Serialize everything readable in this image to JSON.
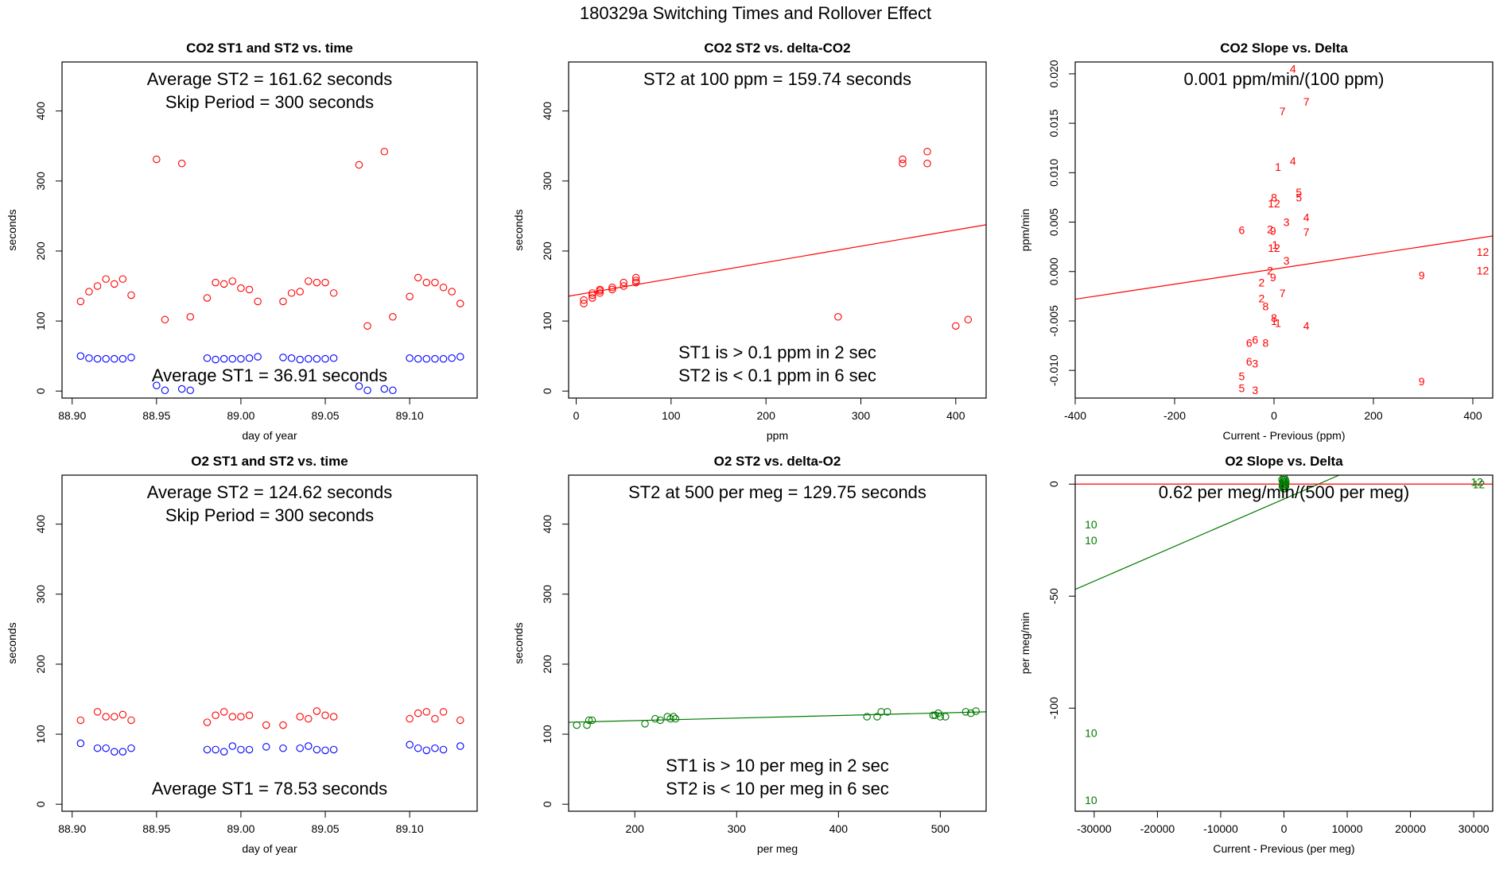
{
  "page_title": "180329a   Switching Times and Rollover Effect",
  "colors": {
    "red": "#ff0000",
    "blue": "#0000ff",
    "green": "#007a00",
    "axis": "#000000"
  },
  "chart_data": [
    {
      "id": "p1",
      "type": "scatter",
      "title": "CO2 ST1 and ST2 vs. time",
      "xlabel": "day of year",
      "ylabel": "seconds",
      "xlim": [
        88.894,
        89.14
      ],
      "ylim": [
        -10,
        470
      ],
      "xticks": [
        88.9,
        88.95,
        89.0,
        89.05,
        89.1
      ],
      "xtick_labels": [
        "88.90",
        "88.95",
        "89.00",
        "89.05",
        "89.10"
      ],
      "yticks": [
        0,
        100,
        200,
        300,
        400
      ],
      "ytick_labels": [
        "0",
        "100",
        "200",
        "300",
        "400"
      ],
      "annotations": [
        {
          "text": "Average ST2 =  161.62  seconds",
          "pos": "top-1"
        },
        {
          "text": "Skip Period =  300  seconds",
          "pos": "top-2"
        },
        {
          "text": "Average ST1 =  36.91  seconds",
          "pos": "bottom-1"
        }
      ],
      "series": [
        {
          "name": "ST2",
          "marker": "circle",
          "color": "#ff0000",
          "x": [
            88.905,
            88.91,
            88.915,
            88.92,
            88.925,
            88.93,
            88.935,
            88.95,
            88.955,
            88.965,
            88.97,
            88.98,
            88.985,
            88.99,
            88.995,
            89.0,
            89.005,
            89.01,
            89.025,
            89.03,
            89.035,
            89.04,
            89.045,
            89.05,
            89.055,
            89.07,
            89.075,
            89.085,
            89.09,
            89.1,
            89.105,
            89.11,
            89.115,
            89.12,
            89.125,
            89.13
          ],
          "y": [
            128,
            142,
            150,
            160,
            153,
            160,
            137,
            331,
            102,
            325,
            106,
            133,
            155,
            153,
            157,
            147,
            145,
            128,
            128,
            140,
            142,
            157,
            155,
            155,
            140,
            323,
            93,
            342,
            106,
            135,
            162,
            155,
            155,
            148,
            142,
            125
          ]
        },
        {
          "name": "ST1",
          "marker": "circle",
          "color": "#0000ff",
          "x": [
            88.905,
            88.91,
            88.915,
            88.92,
            88.925,
            88.93,
            88.935,
            88.95,
            88.955,
            88.965,
            88.97,
            88.98,
            88.985,
            88.99,
            88.995,
            89.0,
            89.005,
            89.01,
            89.025,
            89.03,
            89.035,
            89.04,
            89.045,
            89.05,
            89.055,
            89.07,
            89.075,
            89.085,
            89.09,
            89.1,
            89.105,
            89.11,
            89.115,
            89.12,
            89.125,
            89.13
          ],
          "y": [
            50,
            47,
            46,
            46,
            46,
            46,
            48,
            8,
            1,
            3,
            1,
            47,
            45,
            46,
            46,
            46,
            47,
            49,
            48,
            47,
            45,
            46,
            46,
            46,
            47,
            7,
            1,
            3,
            1,
            47,
            46,
            46,
            46,
            46,
            47,
            49
          ]
        }
      ]
    },
    {
      "id": "p2",
      "type": "scatter",
      "title": "CO2 ST2 vs. delta-CO2",
      "xlabel": "ppm",
      "ylabel": "seconds",
      "xlim": [
        -8,
        432
      ],
      "ylim": [
        -10,
        470
      ],
      "xticks": [
        0,
        100,
        200,
        300,
        400
      ],
      "xtick_labels": [
        "0",
        "100",
        "200",
        "300",
        "400"
      ],
      "yticks": [
        0,
        100,
        200,
        300,
        400
      ],
      "ytick_labels": [
        "0",
        "100",
        "200",
        "300",
        "400"
      ],
      "annotations": [
        {
          "text": "ST2 at 100 ppm =  159.74  seconds",
          "pos": "top-1"
        },
        {
          "text": "ST1 is > 0.1 ppm in 2 sec",
          "pos": "bottom-2"
        },
        {
          "text": "ST2 is < 0.1 ppm in 6 sec",
          "pos": "bottom-1"
        }
      ],
      "fit_line": {
        "color": "#ff0000",
        "x": [
          -8,
          432
        ],
        "y": [
          135.5,
          237.5
        ]
      },
      "series": [
        {
          "name": "ST2",
          "marker": "circle",
          "color": "#ff0000",
          "x": [
            8,
            8,
            17,
            17,
            17,
            25,
            25,
            25,
            38,
            38,
            50,
            50,
            63,
            63,
            63,
            276,
            344,
            344,
            370,
            370,
            400,
            413
          ],
          "y": [
            125,
            130,
            133,
            137,
            140,
            140,
            143,
            145,
            145,
            148,
            150,
            155,
            155,
            158,
            162,
            106,
            325,
            331,
            325,
            342,
            93,
            102
          ]
        }
      ]
    },
    {
      "id": "p3",
      "type": "scatter",
      "title": "CO2 Slope vs. Delta",
      "xlabel": "Current - Previous (ppm)",
      "ylabel": "ppm/min",
      "xlim": [
        -400,
        440
      ],
      "ylim": [
        -0.0128,
        0.0212
      ],
      "xticks": [
        -400,
        -200,
        0,
        200,
        400
      ],
      "xtick_labels": [
        "-400",
        "-200",
        "0",
        "200",
        "400"
      ],
      "yticks": [
        -0.01,
        -0.005,
        0.0,
        0.005,
        0.01,
        0.015,
        0.02
      ],
      "ytick_labels": [
        "-0.010",
        "-0.005",
        "0.000",
        "0.005",
        "0.010",
        "0.015",
        "0.020"
      ],
      "annotations": [
        {
          "text": "0.001  ppm/min/(100 ppm)",
          "pos": "top-1"
        }
      ],
      "fit_line": {
        "color": "#ff0000",
        "x": [
          -400,
          440
        ],
        "y": [
          -0.0028,
          0.0036
        ]
      },
      "series": [
        {
          "name": "slope labels",
          "marker": "label",
          "color": "#ff0000",
          "points": [
            {
              "x": 38,
              "y": 0.0205,
              "label": "4"
            },
            {
              "x": 65,
              "y": 0.0172,
              "label": "7"
            },
            {
              "x": 17,
              "y": 0.0162,
              "label": "7"
            },
            {
              "x": 38,
              "y": 0.0112,
              "label": "4"
            },
            {
              "x": 8,
              "y": 0.0106,
              "label": "1"
            },
            {
              "x": 50,
              "y": 0.008,
              "label": "5"
            },
            {
              "x": 50,
              "y": 0.0075,
              "label": "5"
            },
            {
              "x": 0,
              "y": 0.0075,
              "label": "8"
            },
            {
              "x": 0,
              "y": 0.0069,
              "label": "12"
            },
            {
              "x": 65,
              "y": 0.0055,
              "label": "4"
            },
            {
              "x": 25,
              "y": 0.005,
              "label": "3"
            },
            {
              "x": -65,
              "y": 0.0042,
              "label": "6"
            },
            {
              "x": -8,
              "y": 0.0043,
              "label": "2"
            },
            {
              "x": -2,
              "y": 0.0041,
              "label": "9"
            },
            {
              "x": 65,
              "y": 0.004,
              "label": "7"
            },
            {
              "x": 2,
              "y": 0.0027,
              "label": "1"
            },
            {
              "x": 0,
              "y": 0.0024,
              "label": "12"
            },
            {
              "x": 25,
              "y": 0.0011,
              "label": "3"
            },
            {
              "x": -8,
              "y": 0.0001,
              "label": "2"
            },
            {
              "x": -2,
              "y": -0.0006,
              "label": "9"
            },
            {
              "x": -25,
              "y": -0.0011,
              "label": "2"
            },
            {
              "x": 17,
              "y": -0.0022,
              "label": "7"
            },
            {
              "x": -25,
              "y": -0.0027,
              "label": "2"
            },
            {
              "x": -17,
              "y": -0.0035,
              "label": "8"
            },
            {
              "x": 0,
              "y": -0.0047,
              "label": "8"
            },
            {
              "x": 0,
              "y": -0.005,
              "label": "1"
            },
            {
              "x": 8,
              "y": -0.0052,
              "label": "1"
            },
            {
              "x": 65,
              "y": -0.0055,
              "label": "4"
            },
            {
              "x": -50,
              "y": -0.0072,
              "label": "6"
            },
            {
              "x": -38,
              "y": -0.0069,
              "label": "6"
            },
            {
              "x": -17,
              "y": -0.0072,
              "label": "8"
            },
            {
              "x": -50,
              "y": -0.0091,
              "label": "6"
            },
            {
              "x": -38,
              "y": -0.0093,
              "label": "3"
            },
            {
              "x": -65,
              "y": -0.0106,
              "label": "5"
            },
            {
              "x": -65,
              "y": -0.0118,
              "label": "5"
            },
            {
              "x": -38,
              "y": -0.012,
              "label": "3"
            },
            {
              "x": 297,
              "y": -0.0004,
              "label": "9"
            },
            {
              "x": 297,
              "y": -0.0111,
              "label": "9"
            },
            {
              "x": 420,
              "y": 0.002,
              "label": "12"
            },
            {
              "x": 420,
              "y": 0.0001,
              "label": "12"
            }
          ]
        }
      ]
    },
    {
      "id": "p4",
      "type": "scatter",
      "title": "O2 ST1 and ST2 vs. time",
      "xlabel": "day of year",
      "ylabel": "seconds",
      "xlim": [
        88.894,
        89.14
      ],
      "ylim": [
        -10,
        470
      ],
      "xticks": [
        88.9,
        88.95,
        89.0,
        89.05,
        89.1
      ],
      "xtick_labels": [
        "88.90",
        "88.95",
        "89.00",
        "89.05",
        "89.10"
      ],
      "yticks": [
        0,
        100,
        200,
        300,
        400
      ],
      "ytick_labels": [
        "0",
        "100",
        "200",
        "300",
        "400"
      ],
      "annotations": [
        {
          "text": "Average ST2 =  124.62  seconds",
          "pos": "top-1"
        },
        {
          "text": "Skip Period =  300  seconds",
          "pos": "top-2"
        },
        {
          "text": "Average ST1 =  78.53  seconds",
          "pos": "bottom-1"
        }
      ],
      "series": [
        {
          "name": "ST2",
          "marker": "circle",
          "color": "#ff0000",
          "x": [
            88.905,
            88.915,
            88.92,
            88.925,
            88.93,
            88.935,
            88.98,
            88.985,
            88.99,
            88.995,
            89.0,
            89.005,
            89.015,
            89.025,
            89.035,
            89.04,
            89.045,
            89.05,
            89.055,
            89.1,
            89.105,
            89.11,
            89.115,
            89.12,
            89.13
          ],
          "y": [
            120,
            132,
            125,
            125,
            128,
            120,
            117,
            127,
            132,
            125,
            125,
            127,
            113,
            113,
            125,
            122,
            133,
            127,
            125,
            122,
            130,
            132,
            122,
            132,
            120
          ]
        },
        {
          "name": "ST1",
          "marker": "circle",
          "color": "#0000ff",
          "x": [
            88.905,
            88.915,
            88.92,
            88.925,
            88.93,
            88.935,
            88.98,
            88.985,
            88.99,
            88.995,
            89.0,
            89.005,
            89.015,
            89.025,
            89.035,
            89.04,
            89.045,
            89.05,
            89.055,
            89.1,
            89.105,
            89.11,
            89.115,
            89.12,
            89.13
          ],
          "y": [
            87,
            80,
            80,
            75,
            75,
            80,
            78,
            78,
            75,
            83,
            78,
            78,
            82,
            80,
            80,
            83,
            78,
            77,
            78,
            85,
            80,
            77,
            80,
            78,
            83
          ]
        }
      ]
    },
    {
      "id": "p5",
      "type": "scatter",
      "title": "O2 ST2 vs. delta-O2",
      "xlabel": "per meg",
      "ylabel": "seconds",
      "xlim": [
        135,
        545
      ],
      "ylim": [
        -10,
        470
      ],
      "xticks": [
        200,
        300,
        400,
        500
      ],
      "xtick_labels": [
        "200",
        "300",
        "400",
        "500"
      ],
      "yticks": [
        0,
        100,
        200,
        300,
        400
      ],
      "ytick_labels": [
        "0",
        "100",
        "200",
        "300",
        "400"
      ],
      "annotations": [
        {
          "text": "ST2 at 500 per meg =  129.75  seconds",
          "pos": "top-1"
        },
        {
          "text": "ST1 is > 10 per meg in 2 sec",
          "pos": "bottom-2"
        },
        {
          "text": "ST2 is < 10 per meg in 6 sec",
          "pos": "bottom-1"
        }
      ],
      "fit_line": {
        "color": "#007a00",
        "x": [
          135,
          545
        ],
        "y": [
          117,
          132
        ]
      },
      "series": [
        {
          "name": "ST2",
          "marker": "circle",
          "color": "#007a00",
          "x": [
            143,
            153,
            155,
            158,
            210,
            220,
            225,
            232,
            235,
            238,
            240,
            428,
            438,
            442,
            448,
            493,
            495,
            498,
            500,
            505,
            525,
            530,
            535
          ],
          "y": [
            113,
            113,
            120,
            120,
            115,
            122,
            120,
            125,
            122,
            125,
            122,
            125,
            125,
            132,
            132,
            127,
            127,
            130,
            125,
            125,
            132,
            130,
            133
          ]
        }
      ]
    },
    {
      "id": "p6",
      "type": "scatter",
      "title": "O2 Slope vs. Delta",
      "xlabel": "Current - Previous (per meg)",
      "ylabel": "per meg/min",
      "xlim": [
        -33000,
        33000
      ],
      "ylim": [
        -146,
        4
      ],
      "xticks": [
        -30000,
        -20000,
        -10000,
        0,
        10000,
        20000,
        30000
      ],
      "xtick_labels": [
        "-30000",
        "-20000",
        "-10000",
        "0",
        "10000",
        "20000",
        "30000"
      ],
      "yticks": [
        -100,
        -50,
        0
      ],
      "ytick_labels": [
        "-100",
        "-50",
        "0"
      ],
      "annotations": [
        {
          "text": "0.62  per meg/min/(500 per meg)",
          "pos": "top-1"
        }
      ],
      "fit_lines": [
        {
          "color": "#007a00",
          "x": [
            -33000,
            12000
          ],
          "y": [
            -47,
            8
          ]
        },
        {
          "color": "#ff0000",
          "x": [
            -33000,
            33000
          ],
          "y": [
            0,
            0
          ]
        }
      ],
      "series": [
        {
          "name": "slope labels",
          "marker": "label",
          "color": "#007a00",
          "points": [
            {
              "x": -30500,
              "y": -18,
              "label": "10"
            },
            {
              "x": -30500,
              "y": -25,
              "label": "10"
            },
            {
              "x": -30500,
              "y": -111,
              "label": "10"
            },
            {
              "x": -30500,
              "y": -141,
              "label": "10"
            },
            {
              "x": 30500,
              "y": 1,
              "label": "12"
            },
            {
              "x": 30800,
              "y": 0,
              "label": "12"
            }
          ]
        },
        {
          "name": "center cluster",
          "marker": "circle",
          "color": "#007a00",
          "x": [
            -300,
            -200,
            -150,
            -100,
            -50,
            0,
            50,
            100,
            150,
            200,
            250,
            300,
            -250,
            -100,
            0,
            100,
            250,
            0,
            -50,
            50
          ],
          "y": [
            2,
            1,
            -1,
            0,
            2,
            -2,
            1,
            0,
            -1,
            2,
            0,
            1,
            -1,
            -2,
            3,
            -2,
            -1,
            0,
            1,
            -1
          ]
        }
      ]
    }
  ]
}
